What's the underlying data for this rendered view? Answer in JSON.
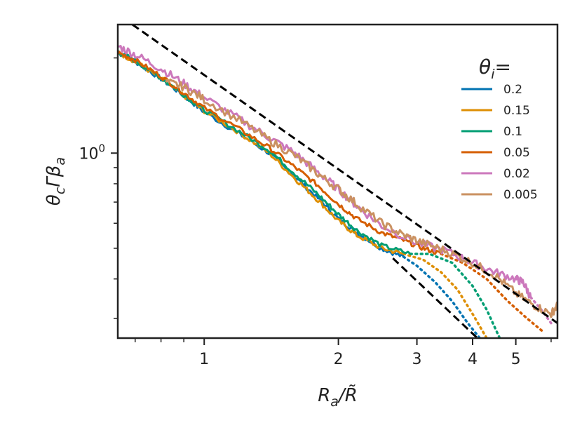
{
  "chart_data": {
    "type": "line",
    "title": "",
    "xlabel": "R_a/R̃",
    "ylabel": "θ_c Γ β_a",
    "xscale": "log",
    "yscale": "log",
    "xlim": [
      0.64,
      6.2
    ],
    "ylim": [
      0.26,
      2.55
    ],
    "x_ticks": [
      1,
      2,
      3,
      4,
      5
    ],
    "x_tick_labels": [
      "1",
      "2",
      "3",
      "4",
      "5"
    ],
    "y_major_ticks": [
      1.0
    ],
    "y_major_tick_labels": [
      "10^0"
    ],
    "y_minor_ticks": [
      0.3,
      0.4,
      0.5,
      0.6,
      0.7,
      0.8,
      0.9,
      2.0
    ],
    "x_minor_ticks": [
      0.7,
      0.8,
      0.9,
      6.0
    ],
    "grid": false,
    "legend": {
      "title": "θ_i =",
      "position": "top-right",
      "entries": [
        "0.2",
        "0.15",
        "0.1",
        "0.05",
        "0.02",
        "0.005"
      ]
    },
    "reference_lines": [
      {
        "style": "dashed",
        "color": "#000000",
        "points": [
          [
            0.69,
            2.55
          ],
          [
            6.2,
            0.29
          ]
        ]
      },
      {
        "style": "dashed",
        "color": "#000000",
        "points": [
          [
            2.65,
            0.465
          ],
          [
            4.1,
            0.26
          ]
        ]
      }
    ],
    "series": [
      {
        "name": "0.2",
        "color": "#0173b2",
        "solid": [
          [
            0.64,
            2.08
          ],
          [
            0.7,
            1.95
          ],
          [
            0.8,
            1.72
          ],
          [
            0.9,
            1.52
          ],
          [
            1.0,
            1.35
          ],
          [
            1.2,
            1.15
          ],
          [
            1.4,
            1.0
          ],
          [
            1.6,
            0.84
          ],
          [
            1.8,
            0.72
          ],
          [
            2.0,
            0.62
          ],
          [
            2.2,
            0.56
          ],
          [
            2.5,
            0.5
          ],
          [
            2.8,
            0.47
          ]
        ],
        "dotted": [
          [
            2.8,
            0.47
          ],
          [
            3.0,
            0.44
          ],
          [
            3.3,
            0.39
          ],
          [
            3.6,
            0.34
          ],
          [
            3.9,
            0.29
          ],
          [
            4.15,
            0.26
          ]
        ]
      },
      {
        "name": "0.15",
        "color": "#de8f05",
        "solid": [
          [
            0.64,
            2.08
          ],
          [
            0.7,
            1.95
          ],
          [
            0.8,
            1.72
          ],
          [
            0.9,
            1.52
          ],
          [
            1.0,
            1.36
          ],
          [
            1.2,
            1.16
          ],
          [
            1.4,
            1.0
          ],
          [
            1.6,
            0.83
          ],
          [
            1.8,
            0.71
          ],
          [
            2.0,
            0.61
          ],
          [
            2.2,
            0.55
          ],
          [
            2.5,
            0.5
          ],
          [
            2.8,
            0.48
          ]
        ],
        "dotted": [
          [
            2.8,
            0.48
          ],
          [
            3.1,
            0.46
          ],
          [
            3.4,
            0.42
          ],
          [
            3.7,
            0.37
          ],
          [
            4.0,
            0.31
          ],
          [
            4.3,
            0.26
          ]
        ]
      },
      {
        "name": "0.1",
        "color": "#029e73",
        "solid": [
          [
            0.64,
            2.1
          ],
          [
            0.7,
            1.96
          ],
          [
            0.8,
            1.73
          ],
          [
            0.9,
            1.53
          ],
          [
            1.0,
            1.37
          ],
          [
            1.2,
            1.17
          ],
          [
            1.4,
            1.02
          ],
          [
            1.6,
            0.86
          ],
          [
            1.8,
            0.74
          ],
          [
            2.0,
            0.64
          ],
          [
            2.2,
            0.57
          ],
          [
            2.5,
            0.51
          ],
          [
            2.9,
            0.48
          ]
        ],
        "dotted": [
          [
            2.9,
            0.48
          ],
          [
            3.2,
            0.48
          ],
          [
            3.6,
            0.45
          ],
          [
            4.0,
            0.38
          ],
          [
            4.3,
            0.32
          ],
          [
            4.6,
            0.26
          ]
        ]
      },
      {
        "name": "0.05",
        "color": "#d55e00",
        "solid": [
          [
            0.64,
            2.08
          ],
          [
            0.7,
            1.97
          ],
          [
            0.8,
            1.75
          ],
          [
            0.9,
            1.55
          ],
          [
            1.0,
            1.39
          ],
          [
            1.2,
            1.19
          ],
          [
            1.4,
            1.04
          ],
          [
            1.6,
            0.9
          ],
          [
            1.8,
            0.79
          ],
          [
            2.0,
            0.69
          ],
          [
            2.2,
            0.62
          ],
          [
            2.5,
            0.56
          ],
          [
            2.8,
            0.53
          ],
          [
            3.1,
            0.5
          ],
          [
            3.4,
            0.48
          ]
        ],
        "dotted": [
          [
            3.4,
            0.48
          ],
          [
            3.8,
            0.45
          ],
          [
            4.3,
            0.4
          ],
          [
            4.8,
            0.34
          ],
          [
            5.3,
            0.3
          ],
          [
            5.8,
            0.27
          ]
        ]
      },
      {
        "name": "0.02",
        "color": "#cc78bc",
        "solid": [
          [
            0.64,
            2.18
          ],
          [
            0.7,
            2.05
          ],
          [
            0.8,
            1.85
          ],
          [
            0.9,
            1.66
          ],
          [
            1.0,
            1.5
          ],
          [
            1.2,
            1.28
          ],
          [
            1.4,
            1.12
          ],
          [
            1.6,
            1.0
          ],
          [
            1.8,
            0.87
          ],
          [
            2.0,
            0.77
          ],
          [
            2.2,
            0.68
          ],
          [
            2.5,
            0.59
          ],
          [
            3.0,
            0.52
          ],
          [
            3.5,
            0.49
          ],
          [
            4.0,
            0.45
          ],
          [
            4.5,
            0.42
          ],
          [
            5.0,
            0.4
          ],
          [
            5.2,
            0.39
          ],
          [
            5.4,
            0.35
          ]
        ],
        "dotted": [
          [
            5.4,
            0.35
          ],
          [
            5.7,
            0.32
          ],
          [
            6.0,
            0.29
          ]
        ]
      },
      {
        "name": "0.005",
        "color": "#ca9161",
        "solid": [
          [
            0.82,
            1.68
          ],
          [
            0.9,
            1.62
          ],
          [
            1.0,
            1.48
          ],
          [
            1.2,
            1.27
          ],
          [
            1.4,
            1.1
          ],
          [
            1.6,
            0.98
          ],
          [
            1.8,
            0.86
          ],
          [
            2.0,
            0.77
          ],
          [
            2.2,
            0.69
          ],
          [
            2.5,
            0.6
          ],
          [
            2.8,
            0.55
          ],
          [
            3.1,
            0.52
          ],
          [
            3.5,
            0.49
          ],
          [
            4.0,
            0.45
          ],
          [
            4.5,
            0.41
          ],
          [
            5.0,
            0.36
          ],
          [
            5.5,
            0.33
          ],
          [
            6.0,
            0.31
          ],
          [
            6.2,
            0.33
          ]
        ],
        "dotted": []
      }
    ]
  }
}
